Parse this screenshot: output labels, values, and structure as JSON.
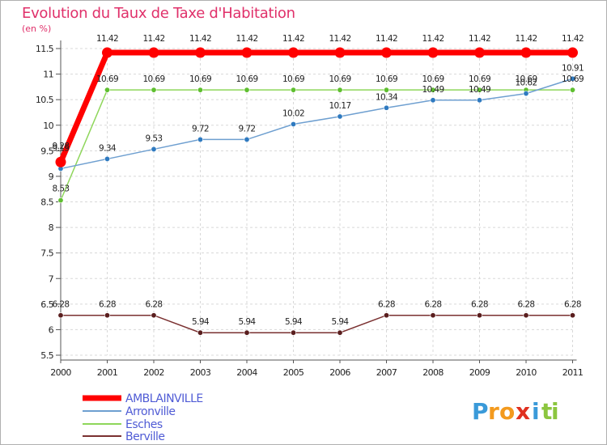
{
  "chart_data": {
    "type": "line",
    "title": "Evolution du Taux de Taxe d'Habitation",
    "ylabel": "(en %)",
    "xlabel": "",
    "categories": [
      "2000",
      "2001",
      "2002",
      "2003",
      "2004",
      "2005",
      "2006",
      "2007",
      "2008",
      "2009",
      "2010",
      "2011"
    ],
    "ylim": [
      5.5,
      11.5
    ],
    "yticks": [
      "5.5",
      "6",
      "6.5",
      "7",
      "7.5",
      "8",
      "8.5",
      "9",
      "9.5",
      "10",
      "10.5",
      "11",
      "11.5"
    ],
    "series": [
      {
        "name": "AMBLAINVILLE",
        "color": "#ff0000",
        "values": [
          9.28,
          11.42,
          11.42,
          11.42,
          11.42,
          11.42,
          11.42,
          11.42,
          11.42,
          11.42,
          11.42,
          11.42
        ],
        "labels": [
          "9.28",
          "11.42",
          "11.42",
          "11.42",
          "11.42",
          "11.42",
          "11.42",
          "11.42",
          "11.42",
          "11.42",
          "11.42",
          "11.42"
        ]
      },
      {
        "name": "Arronville",
        "color": "#6e9fd0",
        "values": [
          9.15,
          9.34,
          9.53,
          9.72,
          9.72,
          10.02,
          10.17,
          10.34,
          10.49,
          10.49,
          10.62,
          10.91
        ],
        "labels": [
          "9.15",
          "9.34",
          "9.53",
          "9.72",
          "9.72",
          "10.02",
          "10.17",
          "10.34",
          "10.49",
          "10.49",
          "10.62",
          "10.91"
        ]
      },
      {
        "name": "Esches",
        "color": "#8ed65a",
        "values": [
          8.53,
          10.69,
          10.69,
          10.69,
          10.69,
          10.69,
          10.69,
          10.69,
          10.69,
          10.69,
          10.69,
          10.69
        ],
        "labels": [
          "8.53",
          "10.69",
          "10.69",
          "10.69",
          "10.69",
          "10.69",
          "10.69",
          "10.69",
          "10.69",
          "10.69",
          "10.69",
          "10.69"
        ]
      },
      {
        "name": "Berville",
        "color": "#7a3030",
        "values": [
          6.28,
          6.28,
          6.28,
          5.94,
          5.94,
          5.94,
          5.94,
          6.28,
          6.28,
          6.28,
          6.28,
          6.28
        ],
        "labels": [
          "6.28",
          "6.28",
          "6.28",
          "5.94",
          "5.94",
          "5.94",
          "5.94",
          "6.28",
          "6.28",
          "6.28",
          "6.28",
          "6.28"
        ]
      }
    ]
  },
  "logo": {
    "letters": [
      "P",
      "r",
      "o",
      "x",
      "i",
      "t",
      "i"
    ]
  }
}
